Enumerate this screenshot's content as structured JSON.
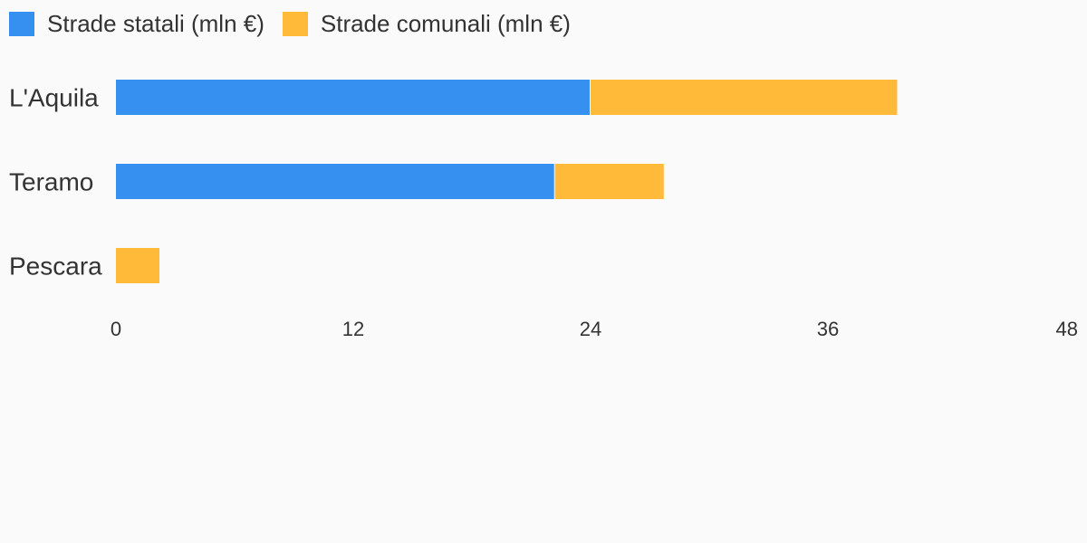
{
  "chart_data": {
    "type": "bar",
    "orientation": "horizontal",
    "stacked": true,
    "categories": [
      "L'Aquila",
      "Teramo",
      "Pescara"
    ],
    "series": [
      {
        "name": "Strade statali (mln €)",
        "values": [
          24,
          22.2,
          0
        ],
        "color": "#3590f0"
      },
      {
        "name": "Strade comunali (mln €)",
        "values": [
          15.5,
          5.5,
          2.2
        ],
        "color": "#ffba3a"
      }
    ],
    "xlim": [
      0,
      48
    ],
    "xticks": [
      "0",
      "12",
      "24",
      "36",
      "48"
    ],
    "grid": false,
    "legend_position": "top-left"
  }
}
